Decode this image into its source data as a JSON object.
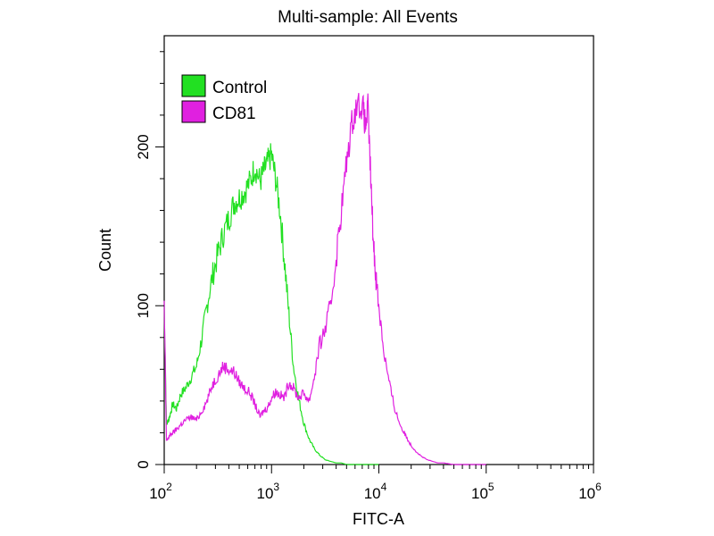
{
  "chart_data": {
    "type": "line",
    "title": "Multi-sample: All Events",
    "xlabel": "FITC-A",
    "ylabel": "Count",
    "x_scale": "log10",
    "xlim": [
      100,
      1000000
    ],
    "ylim": [
      0,
      270
    ],
    "x_ticks": [
      {
        "base": "10",
        "exp": "2",
        "value": 100
      },
      {
        "base": "10",
        "exp": "3",
        "value": 1000
      },
      {
        "base": "10",
        "exp": "4",
        "value": 10000
      },
      {
        "base": "10",
        "exp": "5",
        "value": 100000
      },
      {
        "base": "10",
        "exp": "6",
        "value": 1000000
      }
    ],
    "y_ticks": [
      {
        "label": "0",
        "value": 0
      },
      {
        "label": "100",
        "value": 100
      },
      {
        "label": "200",
        "value": 200
      }
    ],
    "legend_position": "top-left",
    "grid": false,
    "series": [
      {
        "name": "Control",
        "color": "#22e022",
        "x": [
          100,
          105,
          112,
          120,
          130,
          142,
          158,
          178,
          200,
          225,
          250,
          280,
          315,
          355,
          400,
          450,
          500,
          560,
          630,
          700,
          780,
          850,
          920,
          1000,
          1090,
          1200,
          1320,
          1450,
          1600,
          1780,
          2000,
          2240,
          2500,
          2800,
          3160,
          3550,
          4000,
          4470,
          5000,
          6300,
          8000,
          10000
        ],
        "y": [
          100,
          25,
          30,
          38,
          35,
          44,
          48,
          55,
          62,
          80,
          100,
          118,
          132,
          145,
          155,
          165,
          168,
          172,
          178,
          188,
          178,
          185,
          190,
          195,
          180,
          160,
          128,
          95,
          62,
          42,
          26,
          16,
          10,
          6,
          3,
          2,
          1,
          1,
          0,
          0,
          0,
          0
        ]
      },
      {
        "name": "CD81",
        "color": "#e020e0",
        "x": [
          100,
          105,
          112,
          120,
          130,
          142,
          158,
          178,
          200,
          225,
          250,
          280,
          315,
          355,
          400,
          450,
          500,
          560,
          630,
          700,
          780,
          850,
          920,
          1000,
          1090,
          1200,
          1320,
          1450,
          1600,
          1780,
          2000,
          2240,
          2500,
          2800,
          3160,
          3550,
          4000,
          4470,
          5000,
          5600,
          6300,
          7100,
          7500,
          7900,
          8400,
          8900,
          9400,
          10000,
          11200,
          12600,
          14100,
          15800,
          17800,
          20000,
          22400,
          25100,
          28200,
          31600,
          35500,
          40000,
          50000,
          63000,
          80000,
          100000
        ],
        "y": [
          100,
          15,
          18,
          20,
          22,
          25,
          28,
          30,
          28,
          34,
          40,
          50,
          56,
          62,
          60,
          58,
          52,
          48,
          45,
          38,
          30,
          34,
          36,
          42,
          46,
          44,
          42,
          52,
          48,
          42,
          45,
          40,
          55,
          75,
          85,
          100,
          130,
          160,
          190,
          215,
          228,
          225,
          212,
          225,
          180,
          140,
          118,
          100,
          70,
          50,
          35,
          25,
          18,
          12,
          8,
          5,
          3,
          2,
          1,
          1,
          0,
          0,
          0,
          0
        ]
      }
    ]
  }
}
